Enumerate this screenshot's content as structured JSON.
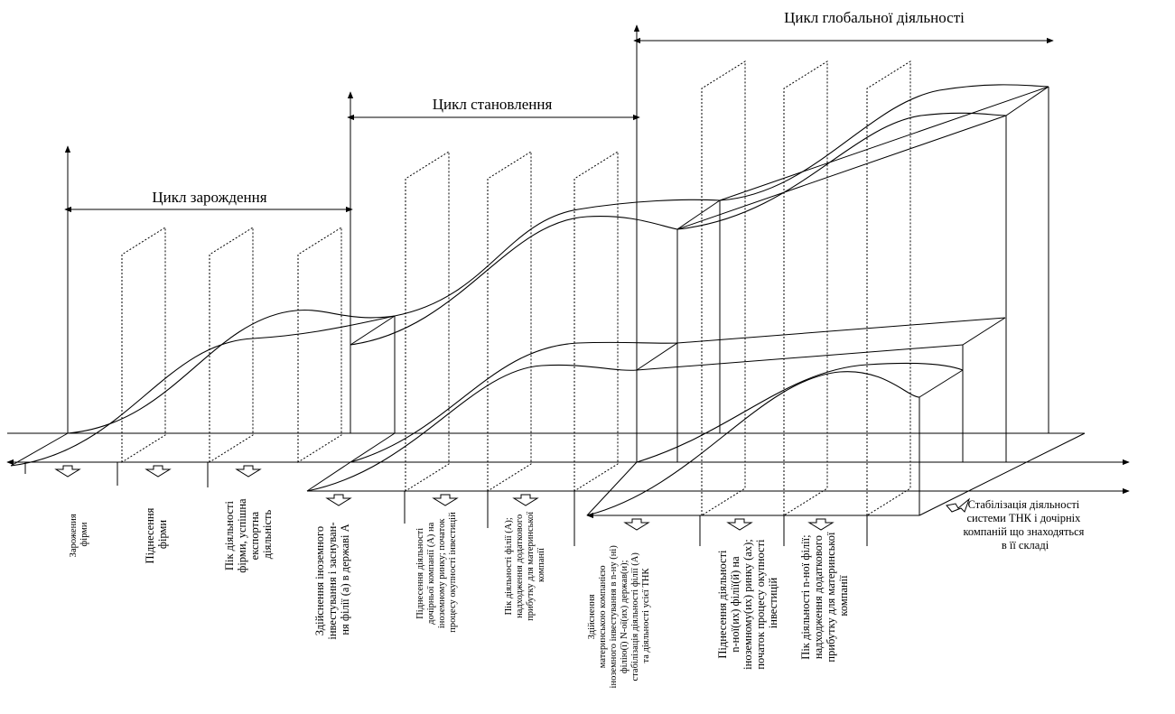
{
  "cycles": {
    "origin": "Цикл зарождення",
    "formation": "Цикл становлення",
    "global": "Цикл глобальної діяльності"
  },
  "stages": {
    "s1": [
      "Зарожения",
      "фірми"
    ],
    "s2": [
      "Піднесення",
      "фірми"
    ],
    "s3": [
      "Пік діяльності",
      "фірми, успішна",
      "експортна",
      "діяльність"
    ],
    "s4": [
      "Здійснення іноземного",
      "інвестування і заснуван-",
      "ня філії (а) в державі А"
    ],
    "s5": [
      "Піднесення діяльності",
      "дочірньої компанії (А) на",
      "іноземному ринку; початок",
      "процесу окупності інвестицій"
    ],
    "s6": [
      "Пік діяльності філії (А);",
      "надходження додаткового",
      "прибутку для материнської",
      "компанії"
    ],
    "s7": [
      "Здійснення",
      "материнською компанією",
      "іноземного інвестування в n-ну (ні)",
      "філію(ї) N-ої(их) держав(и);",
      "стабілізація діяльності філії (А)",
      "та діяльності усієї ТНК"
    ],
    "s8": [
      "Піднесення діяльності",
      "n-ної(их) філії(й) на",
      "іноземному(их) ринку (ах);",
      "початок процесу окупності",
      "інвестицій"
    ],
    "s9": [
      "Пік діяльності n-ної філії;",
      "надходження додаткового",
      "прибутку для материнської",
      "компанії"
    ],
    "s10": [
      "Стабілізація діяльності",
      "системи ТНК і дочірніх",
      "компаній що знаходяться",
      "в її складі"
    ]
  }
}
